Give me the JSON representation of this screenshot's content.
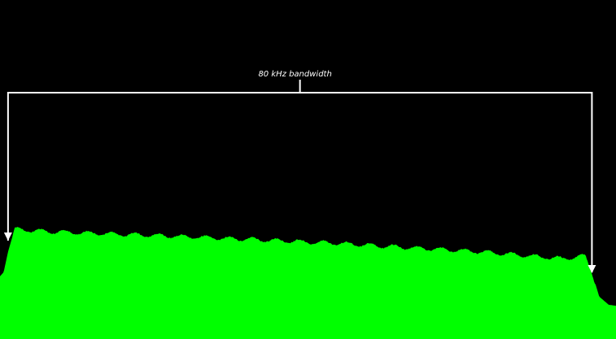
{
  "chart_data": {
    "type": "area",
    "title": "",
    "xlabel": "",
    "ylabel": "",
    "xlim": [
      -41.1,
      43.3
    ],
    "ylim": [
      0,
      100
    ],
    "grid": false,
    "series": [
      {
        "color": "#00ff00",
        "x": [
          -41.1,
          -40.6,
          -40.0,
          -39.1,
          -34.5,
          -19.1,
          3.0,
          25.0,
          36.0,
          39.1,
          40.0,
          41.0,
          42.3,
          43.3
        ],
        "values": [
          18.5,
          19.7,
          25.7,
          32.4,
          31.7,
          30.5,
          28.5,
          25.7,
          23.7,
          24.5,
          19.7,
          12.5,
          10.1,
          9.8
        ]
      }
    ],
    "annotations": [
      {
        "text": "80 kHz bandwidth",
        "from": -40,
        "to": 40,
        "color": "#ffffff"
      }
    ]
  }
}
